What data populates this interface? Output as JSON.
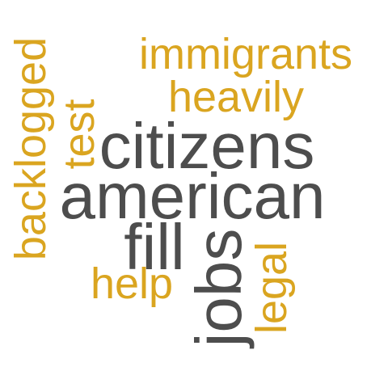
{
  "words": [
    {
      "text": "immigrants",
      "color": "#DAA520",
      "orientation": "horizontal"
    },
    {
      "text": "heavily",
      "color": "#DAA520",
      "orientation": "horizontal"
    },
    {
      "text": "citizens",
      "color": "#4D4D4D",
      "orientation": "horizontal"
    },
    {
      "text": "american",
      "color": "#4D4D4D",
      "orientation": "horizontal"
    },
    {
      "text": "fill",
      "color": "#4D4D4D",
      "orientation": "horizontal"
    },
    {
      "text": "help",
      "color": "#DAA520",
      "orientation": "horizontal"
    },
    {
      "text": "backlogged",
      "color": "#DAA520",
      "orientation": "vertical"
    },
    {
      "text": "test",
      "color": "#DAA520",
      "orientation": "vertical"
    },
    {
      "text": "jobs",
      "color": "#4D4D4D",
      "orientation": "vertical"
    },
    {
      "text": "legal",
      "color": "#DAA520",
      "orientation": "vertical"
    }
  ]
}
